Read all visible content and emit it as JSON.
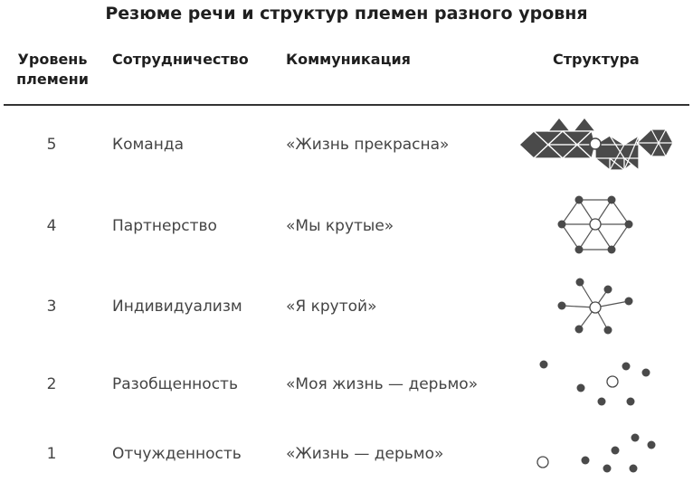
{
  "title": "Резюме речи и структур племен разного уровня",
  "headers": {
    "level_line1": "Уровень",
    "level_line2": "племени",
    "cooperation": "Сотрудничество",
    "communication": "Коммуникация",
    "structure": "Структура"
  },
  "rows": [
    {
      "level": "5",
      "cooperation": "Команда",
      "communication": "«Жизнь прекрасна»",
      "structure_icon": "triangle-mesh-icon"
    },
    {
      "level": "4",
      "cooperation": "Партнерство",
      "communication": "«Мы крутые»",
      "structure_icon": "hexagon-network-icon"
    },
    {
      "level": "3",
      "cooperation": "Индивидуализм",
      "communication": "«Я крутой»",
      "structure_icon": "star-network-icon"
    },
    {
      "level": "2",
      "cooperation": "Разобщенность",
      "communication": "«Моя жизнь — дерьмо»",
      "structure_icon": "scattered-dots-icon"
    },
    {
      "level": "1",
      "cooperation": "Отчужденность",
      "communication": "«Жизнь — дерьмо»",
      "structure_icon": "isolated-dots-icon"
    }
  ],
  "colors": {
    "node": "#4a4a4a",
    "line": "#555555",
    "center": "#ffffff",
    "text": "#444444"
  }
}
